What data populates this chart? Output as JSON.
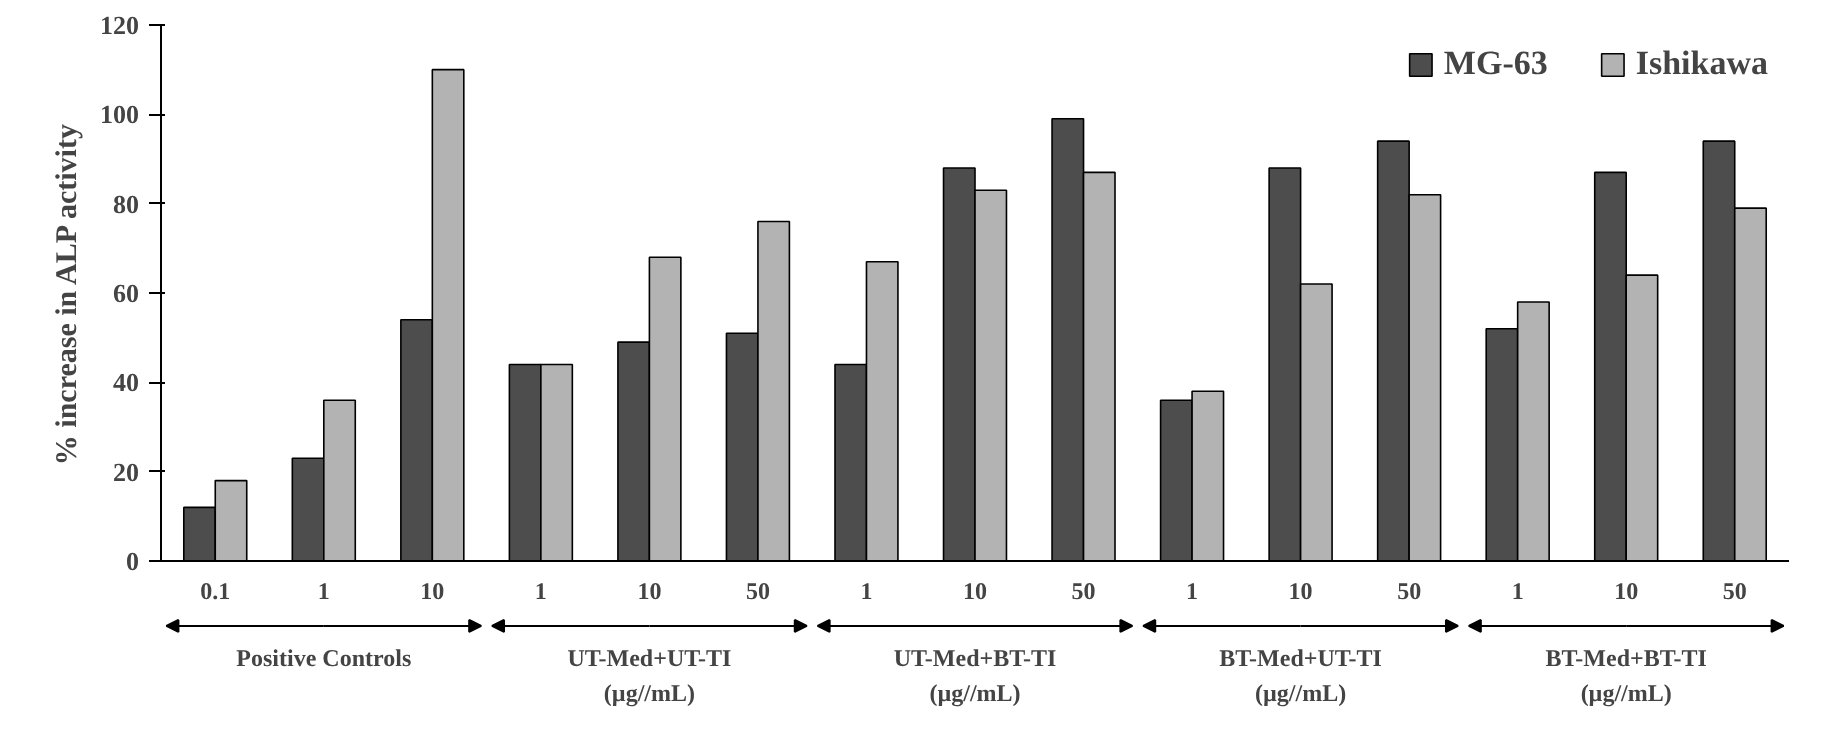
{
  "chart_data": {
    "type": "bar",
    "ylabel": "% increase in ALP activity",
    "categories": [
      "0.1",
      "1",
      "10",
      "1",
      "10",
      "50",
      "1",
      "10",
      "50",
      "1",
      "10",
      "50",
      "1",
      "10",
      "50"
    ],
    "series": [
      {
        "name": "MG-63",
        "color": "#4d4d4d",
        "values": [
          12,
          23,
          54,
          44,
          49,
          51,
          44,
          88,
          99,
          36,
          88,
          94,
          52,
          87,
          94
        ]
      },
      {
        "name": "Ishikawa",
        "color": "#b3b3b3",
        "values": [
          18,
          36,
          110,
          44,
          68,
          76,
          67,
          83,
          87,
          38,
          62,
          82,
          58,
          64,
          79
        ]
      }
    ],
    "ylim": [
      0,
      120
    ],
    "yticks": [
      0,
      20,
      40,
      60,
      80,
      100,
      120
    ],
    "grid": false,
    "legend": "top right",
    "annotations": [
      "Positive Controls",
      "UT-Med+UT-TI\n(µg//mL)",
      "UT-Med+BT-TI\n(µg//mL)",
      "BT-Med+UT-TI\n(µg//mL)",
      "BT-Med+BT-TI\n(µg//mL)"
    ]
  }
}
